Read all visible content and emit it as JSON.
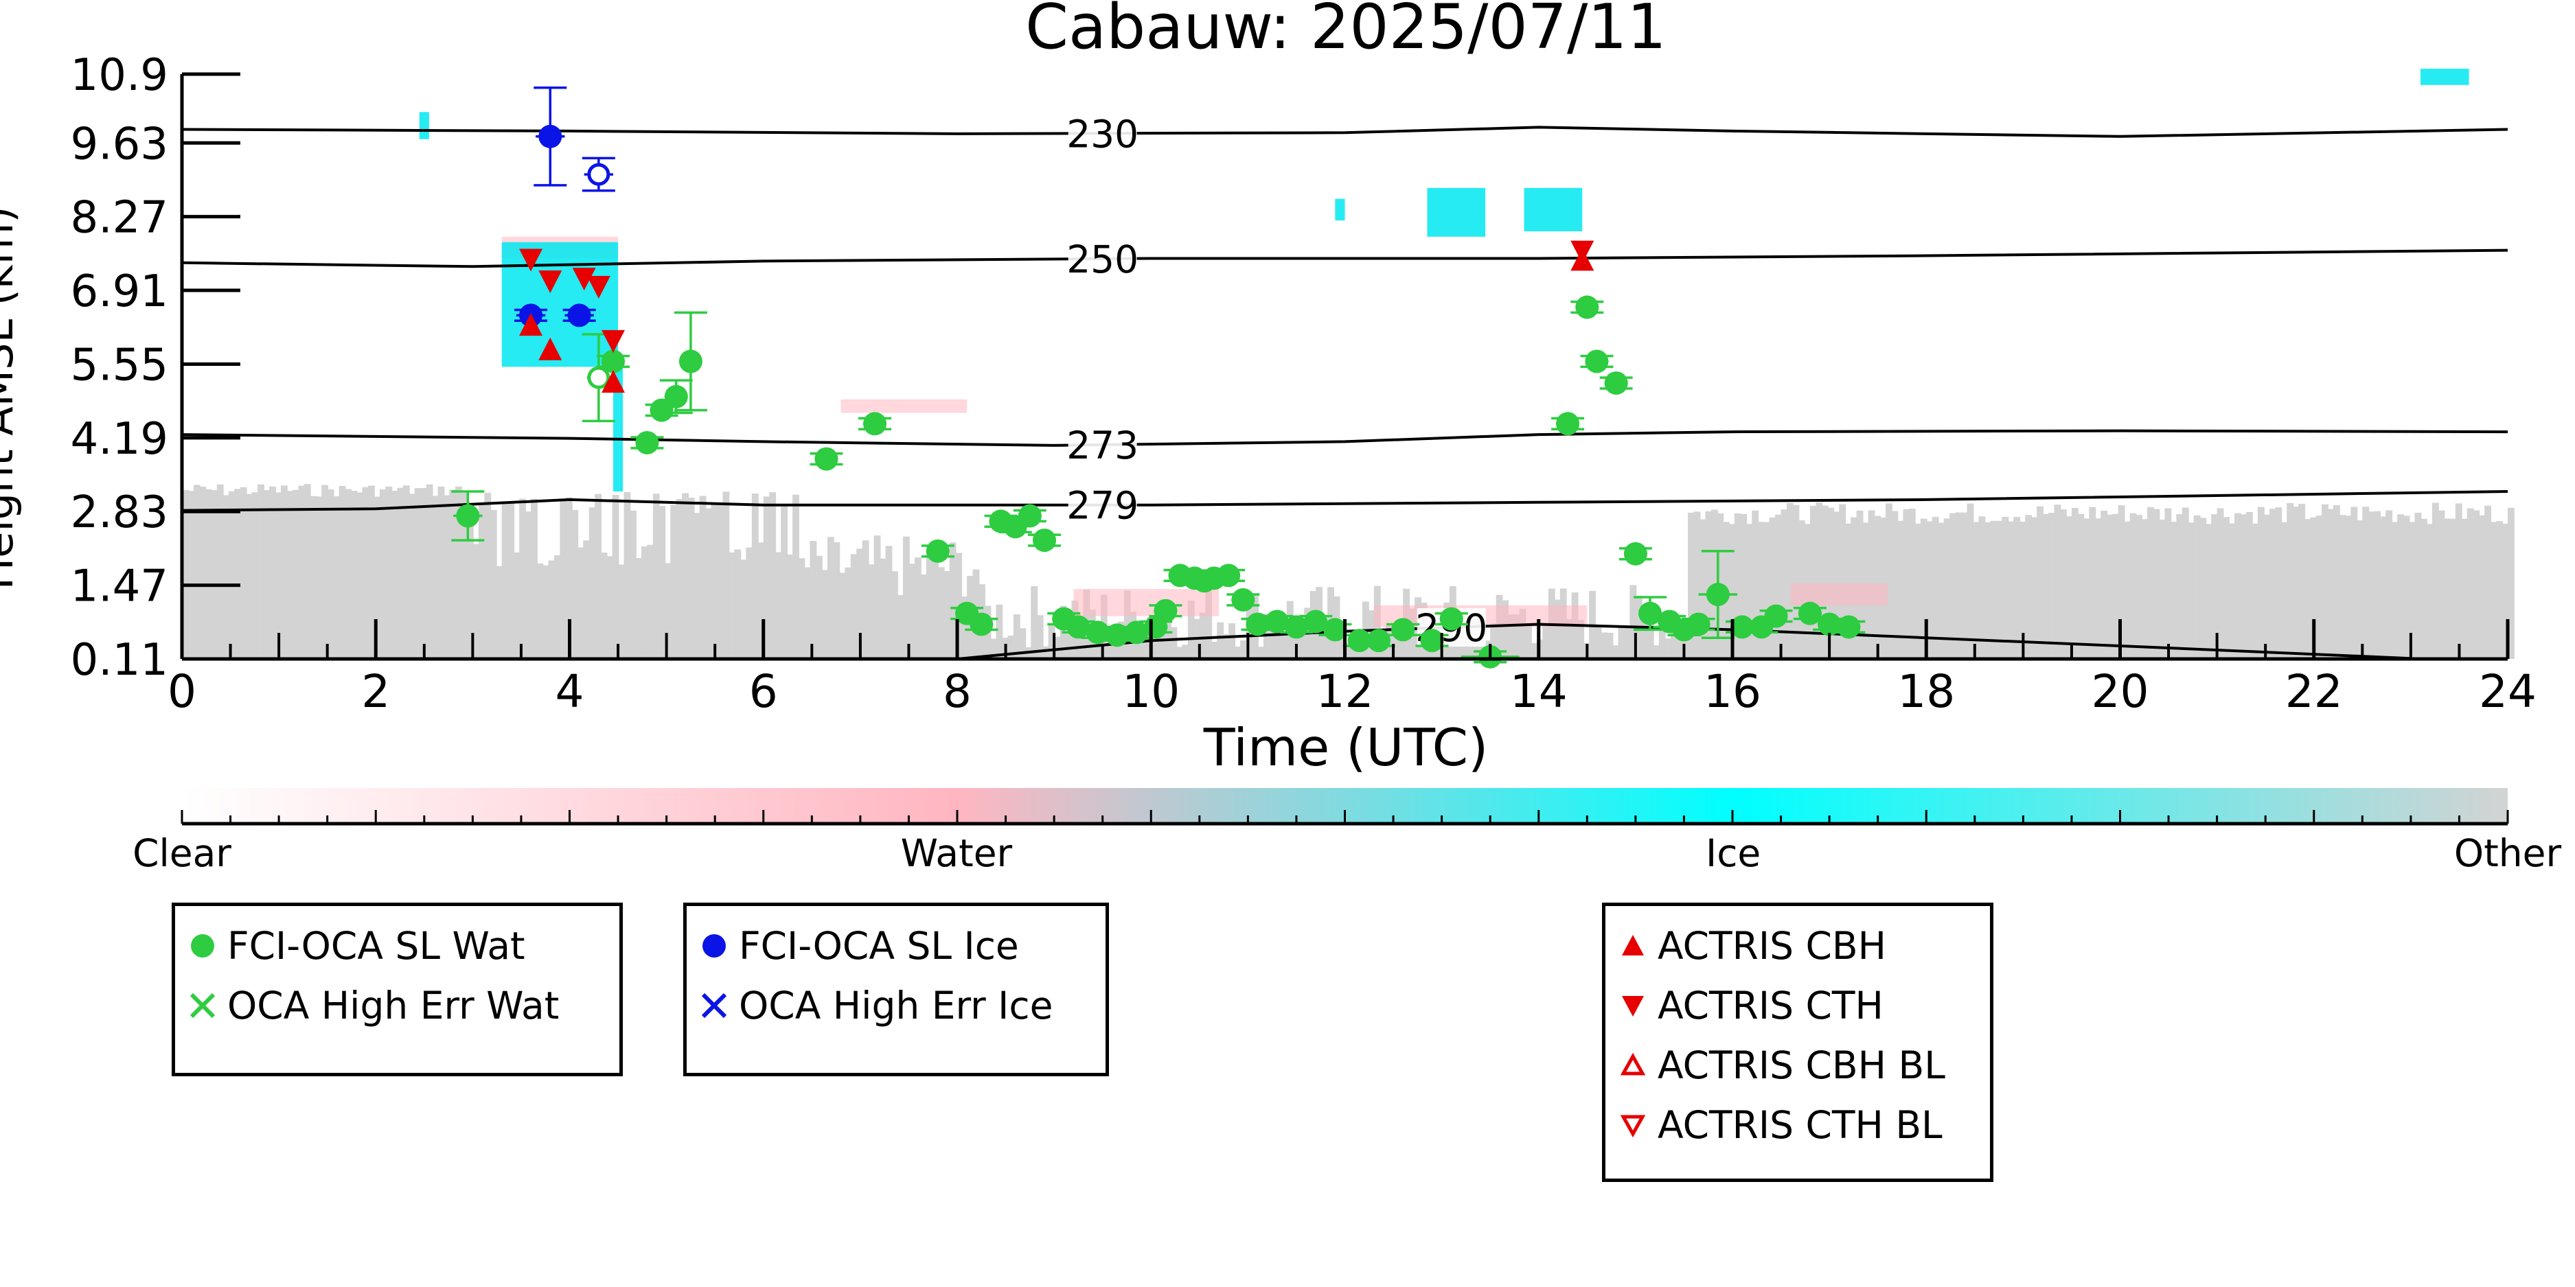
{
  "chart_data": {
    "type": "scatter",
    "title": "Cabauw: 2025/07/11",
    "xlabel": "Time (UTC)",
    "ylabel": "Height AMSL (km)",
    "xlim": [
      0,
      24
    ],
    "ylim": [
      0.11,
      10.9
    ],
    "x_ticks": [
      "0",
      "2",
      "4",
      "6",
      "8",
      "10",
      "12",
      "14",
      "16",
      "18",
      "20",
      "22",
      "24"
    ],
    "y_ticks": [
      "0.11",
      "1.47",
      "2.83",
      "4.19",
      "5.55",
      "6.91",
      "8.27",
      "9.63",
      "10.9"
    ],
    "y_tick_values": [
      0.11,
      1.47,
      2.83,
      4.19,
      5.55,
      6.91,
      8.27,
      9.63,
      10.9
    ],
    "contours": [
      {
        "label": "230",
        "label_x": 9.5,
        "points": [
          [
            0,
            9.88
          ],
          [
            4,
            9.85
          ],
          [
            8,
            9.8
          ],
          [
            12,
            9.82
          ],
          [
            14,
            9.92
          ],
          [
            16,
            9.85
          ],
          [
            20,
            9.75
          ],
          [
            24,
            9.88
          ]
        ]
      },
      {
        "label": "250",
        "label_x": 9.5,
        "points": [
          [
            0,
            7.42
          ],
          [
            3,
            7.35
          ],
          [
            6,
            7.45
          ],
          [
            10,
            7.5
          ],
          [
            14,
            7.5
          ],
          [
            18,
            7.55
          ],
          [
            24,
            7.65
          ]
        ]
      },
      {
        "label": "273",
        "label_x": 9.5,
        "points": [
          [
            0,
            4.25
          ],
          [
            4,
            4.18
          ],
          [
            6,
            4.12
          ],
          [
            9,
            4.05
          ],
          [
            12,
            4.12
          ],
          [
            14,
            4.25
          ],
          [
            16,
            4.3
          ],
          [
            20,
            4.32
          ],
          [
            24,
            4.3
          ]
        ]
      },
      {
        "label": "279",
        "label_x": 9.5,
        "points": [
          [
            0,
            2.85
          ],
          [
            2,
            2.88
          ],
          [
            4,
            3.05
          ],
          [
            6,
            2.95
          ],
          [
            10,
            2.95
          ],
          [
            14,
            3.0
          ],
          [
            18,
            3.05
          ],
          [
            22,
            3.15
          ],
          [
            24,
            3.2
          ]
        ]
      },
      {
        "label": "290",
        "label_x": 13.1,
        "points": [
          [
            8,
            0.11
          ],
          [
            10,
            0.45
          ],
          [
            12,
            0.62
          ],
          [
            14,
            0.75
          ],
          [
            16,
            0.65
          ],
          [
            18,
            0.5
          ],
          [
            20,
            0.35
          ],
          [
            23,
            0.12
          ]
        ]
      }
    ],
    "series": [
      {
        "name": "FCI-OCA SL Wat",
        "color": "#2ecc40",
        "marker": "circle",
        "filled": true,
        "x": [
          2.95,
          4.45,
          4.8,
          4.95,
          5.1,
          5.25,
          6.65,
          7.15,
          7.8,
          8.1,
          8.25,
          8.45,
          8.6,
          8.75,
          8.9,
          9.1,
          9.25,
          9.45,
          9.65,
          9.85,
          10.05,
          10.15,
          10.3,
          10.45,
          10.55,
          10.65,
          10.8,
          10.95,
          11.1,
          11.3,
          11.5,
          11.7,
          11.9,
          12.15,
          12.35,
          12.6,
          12.9,
          13.1,
          13.5,
          14.3,
          14.5,
          14.6,
          14.8,
          15.0,
          15.15,
          15.35,
          15.5,
          15.65,
          15.85,
          16.1,
          16.3,
          16.45,
          16.8,
          17.0,
          17.2
        ],
        "y": [
          2.75,
          5.6,
          4.1,
          4.7,
          4.95,
          5.6,
          3.8,
          4.45,
          2.1,
          0.95,
          0.75,
          2.65,
          2.55,
          2.75,
          2.3,
          0.85,
          0.7,
          0.6,
          0.55,
          0.6,
          0.7,
          1.0,
          1.65,
          1.6,
          1.55,
          1.6,
          1.65,
          1.2,
          0.75,
          0.8,
          0.7,
          0.8,
          0.65,
          0.45,
          0.45,
          0.65,
          0.45,
          0.85,
          0.15,
          4.45,
          6.6,
          5.6,
          5.2,
          2.05,
          0.95,
          0.8,
          0.65,
          0.75,
          1.3,
          0.7,
          0.7,
          0.9,
          0.95,
          0.75,
          0.7
        ],
        "yerr": [
          0.45,
          0.1,
          0.1,
          0.1,
          0.3,
          0.9,
          0.1,
          0.1,
          0.1,
          0.1,
          0.1,
          0.1,
          0.1,
          0.1,
          0.1,
          0.1,
          0.1,
          0.1,
          0.1,
          0.1,
          0.1,
          0.1,
          0.1,
          0.1,
          0.1,
          0.1,
          0.1,
          0.1,
          0.1,
          0.1,
          0.1,
          0.1,
          0.1,
          0.1,
          0.1,
          0.1,
          0.1,
          0.1,
          0.1,
          0.1,
          0.1,
          0.1,
          0.1,
          0.1,
          0.3,
          0.1,
          0.1,
          0.1,
          0.8,
          0.1,
          0.1,
          0.1,
          0.1,
          0.1,
          0.1
        ],
        "xerr": [
          0.15,
          0.12,
          0.12,
          0.12,
          0.12,
          0.1,
          0.12,
          0.12,
          0.12,
          0.12,
          0.12,
          0.12,
          0.12,
          0.12,
          0.12,
          0.12,
          0.12,
          0.12,
          0.12,
          0.12,
          0.12,
          0.12,
          0.12,
          0.12,
          0.12,
          0.12,
          0.12,
          0.12,
          0.12,
          0.12,
          0.12,
          0.12,
          0.12,
          0.12,
          0.12,
          0.12,
          0.12,
          0.12,
          0.3,
          0.12,
          0.12,
          0.12,
          0.12,
          0.12,
          0.12,
          0.12,
          0.12,
          0.12,
          0.2,
          0.12,
          0.12,
          0.12,
          0.12,
          0.12,
          0.12
        ]
      },
      {
        "name": "FCI-OCA SL Ice",
        "color": "#0a14e6",
        "marker": "circle",
        "filled": true,
        "x": [
          3.8,
          3.6,
          4.1
        ],
        "y": [
          9.75,
          6.45,
          6.45
        ],
        "yerr": [
          0.9,
          0.1,
          0.1
        ],
        "xerr": [
          0.15,
          0.15,
          0.15
        ]
      },
      {
        "name": "OCA High Err Wat",
        "color": "#2ecc40",
        "marker": "circle-open",
        "x": [
          4.3
        ],
        "y": [
          5.3
        ],
        "yerr": [
          0.8
        ],
        "xerr": [
          0.12
        ]
      },
      {
        "name": "OCA High Err Ice",
        "color": "#0a14e6",
        "marker": "circle-open",
        "x": [
          4.3
        ],
        "y": [
          9.05
        ],
        "yerr": [
          0.3
        ],
        "xerr": [
          0.15
        ]
      },
      {
        "name": "ACTRIS CBH",
        "color": "#e60000",
        "marker": "triangle-up",
        "x": [
          3.6,
          3.8,
          4.45,
          14.45
        ],
        "y": [
          6.25,
          5.8,
          5.2,
          7.45
        ]
      },
      {
        "name": "ACTRIS CTH",
        "color": "#e60000",
        "marker": "triangle-down",
        "x": [
          3.6,
          3.8,
          4.15,
          4.3,
          4.45,
          14.45
        ],
        "y": [
          7.5,
          7.1,
          7.15,
          7.0,
          6.0,
          7.65
        ]
      },
      {
        "name": "ACTRIS CBH BL",
        "color": "#e60000",
        "marker": "triangle-up-open",
        "x": [],
        "y": []
      },
      {
        "name": "ACTRIS CTH BL",
        "color": "#e60000",
        "marker": "triangle-down-open",
        "x": [],
        "y": []
      }
    ],
    "colorbar": {
      "labels": [
        "Clear",
        "Water",
        "Ice",
        "Other"
      ],
      "colors": [
        "#ffffff",
        "#ffb6c1",
        "#00ffff",
        "#d3d3d3"
      ]
    },
    "legend": {
      "boxes": [
        {
          "entries": [
            "FCI-OCA SL Wat",
            "OCA High Err Wat"
          ]
        },
        {
          "entries": [
            "FCI-OCA SL Ice",
            "OCA High Err Ice"
          ]
        },
        {
          "entries": [
            "ACTRIS CBH",
            "ACTRIS CTH",
            "ACTRIS CBH BL",
            "ACTRIS CTH BL"
          ]
        }
      ],
      "placement": "bottom"
    },
    "grid": false
  }
}
